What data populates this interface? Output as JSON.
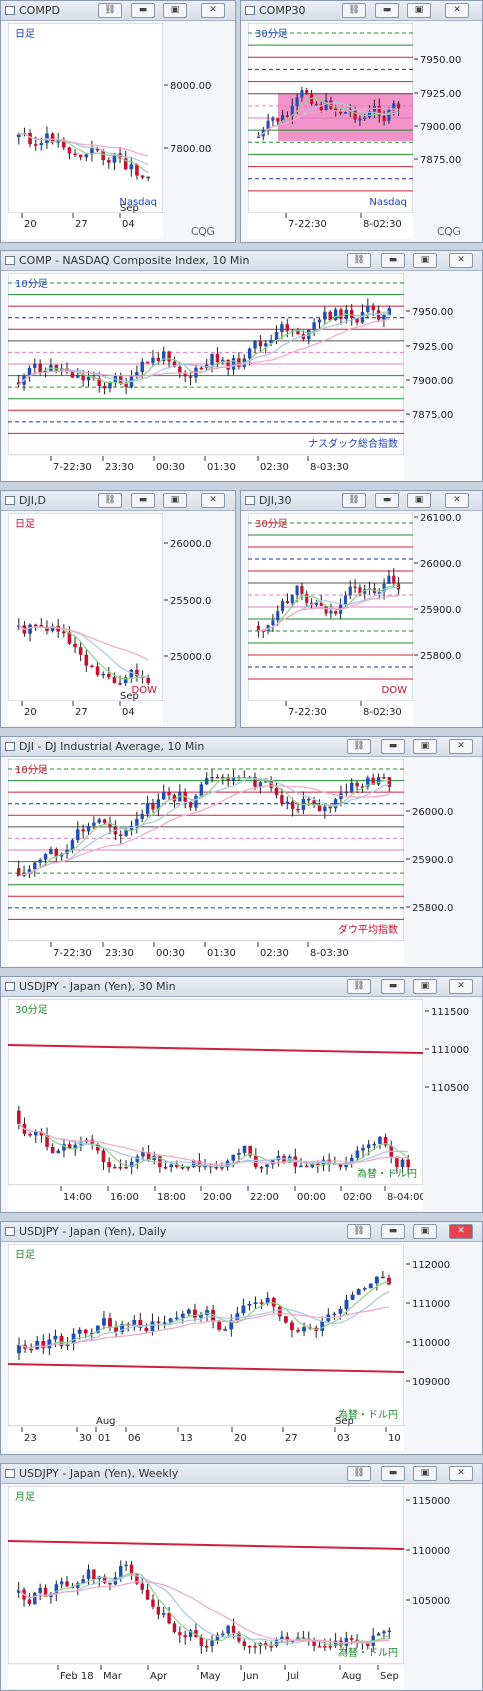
{
  "colors": {
    "up": "#1d4fb4",
    "down": "#c8102e",
    "brand": "#d21f3c"
  },
  "logo": "CQG",
  "windows": [
    {
      "id": "w1",
      "title": "COMPD",
      "interval": "日足",
      "tag": "Nasdaq",
      "tag_color": "#1d3fbf",
      "interval_color": "#1d3fbf",
      "y_ticks": [
        "8000.00",
        "7800.00"
      ],
      "x_ticks": [
        "20",
        "27",
        "04"
      ],
      "x_top": "Sep"
    },
    {
      "id": "w2",
      "title": "COMP30",
      "interval": "30分足",
      "tag": "Nasdaq",
      "tag_color": "#1d3fbf",
      "interval_color": "#1d3fbf",
      "y_ticks": [
        "7950.00",
        "7925.00",
        "7900.00",
        "7875.00"
      ],
      "x_ticks": [
        "7-22:30",
        "8-02:30"
      ]
    },
    {
      "id": "w3",
      "title": "COMP - NASDAQ Composite Index, 10 Min",
      "interval": "10分足",
      "tag": "ナスダック総合指数",
      "tag_color": "#1d3fbf",
      "interval_color": "#1d3fbf",
      "y_ticks": [
        "7950.00",
        "7925.00",
        "7900.00",
        "7875.00"
      ],
      "x_ticks": [
        "7-22:30",
        "23:30",
        "00:30",
        "01:30",
        "02:30",
        "8-03:30"
      ]
    },
    {
      "id": "w4",
      "title": "DJI,D",
      "interval": "日足",
      "tag": "DOW",
      "tag_color": "#c8102e",
      "interval_color": "#c8102e",
      "y_ticks": [
        "26000.0",
        "25500.0",
        "25000.0"
      ],
      "x_ticks": [
        "20",
        "27",
        "04"
      ],
      "x_top": "Sep"
    },
    {
      "id": "w5",
      "title": "DJI,30",
      "interval": "30分足",
      "tag": "DOW",
      "tag_color": "#c8102e",
      "interval_color": "#c8102e",
      "y_ticks": [
        "26100.0",
        "26000.0",
        "25900.0",
        "25800.0"
      ],
      "x_ticks": [
        "7-22:30",
        "8-02:30"
      ]
    },
    {
      "id": "w6",
      "title": "DJI - DJ Industrial Average, 10 Min",
      "interval": "10分足",
      "tag": "ダウ平均指数",
      "tag_color": "#c8102e",
      "interval_color": "#c8102e",
      "y_ticks": [
        "26000.0",
        "25900.0",
        "25800.0"
      ],
      "x_ticks": [
        "7-22:30",
        "23:30",
        "00:30",
        "01:30",
        "02:30",
        "8-03:30"
      ]
    },
    {
      "id": "w7",
      "title": "USDJPY - Japan (Yen), 30 Min",
      "interval": "30分足",
      "tag": "為替・ドル円",
      "tag_color": "#1e8a2a",
      "interval_color": "#1e8a2a",
      "y_ticks": [
        "111500",
        "111000",
        "110500"
      ],
      "x_ticks": [
        "14:00",
        "16:00",
        "18:00",
        "20:00",
        "22:00",
        "00:00",
        "02:00",
        "8-04:00"
      ]
    },
    {
      "id": "w8",
      "title": "USDJPY - Japan (Yen), Daily",
      "interval": "日足",
      "tag": "為替・ドル円",
      "tag_color": "#1e8a2a",
      "interval_color": "#1e8a2a",
      "y_ticks": [
        "112000",
        "111000",
        "110000",
        "109000"
      ],
      "x_ticks": [
        "23",
        "30",
        "01",
        "06",
        "13",
        "20",
        "27",
        "03",
        "10"
      ],
      "x_top": [
        "Aug",
        "Sep"
      ]
    },
    {
      "id": "w9",
      "title": "USDJPY - Japan (Yen), Weekly",
      "interval": "月足",
      "tag": "為替・ドル円",
      "tag_color": "#1e8a2a",
      "interval_color": "#1e8a2a",
      "y_ticks": [
        "115000",
        "110000",
        "105000"
      ],
      "x_ticks": [
        "Feb 18",
        "Mar",
        "Apr",
        "May",
        "Jun",
        "Jul",
        "Aug",
        "Sep"
      ]
    }
  ]
}
